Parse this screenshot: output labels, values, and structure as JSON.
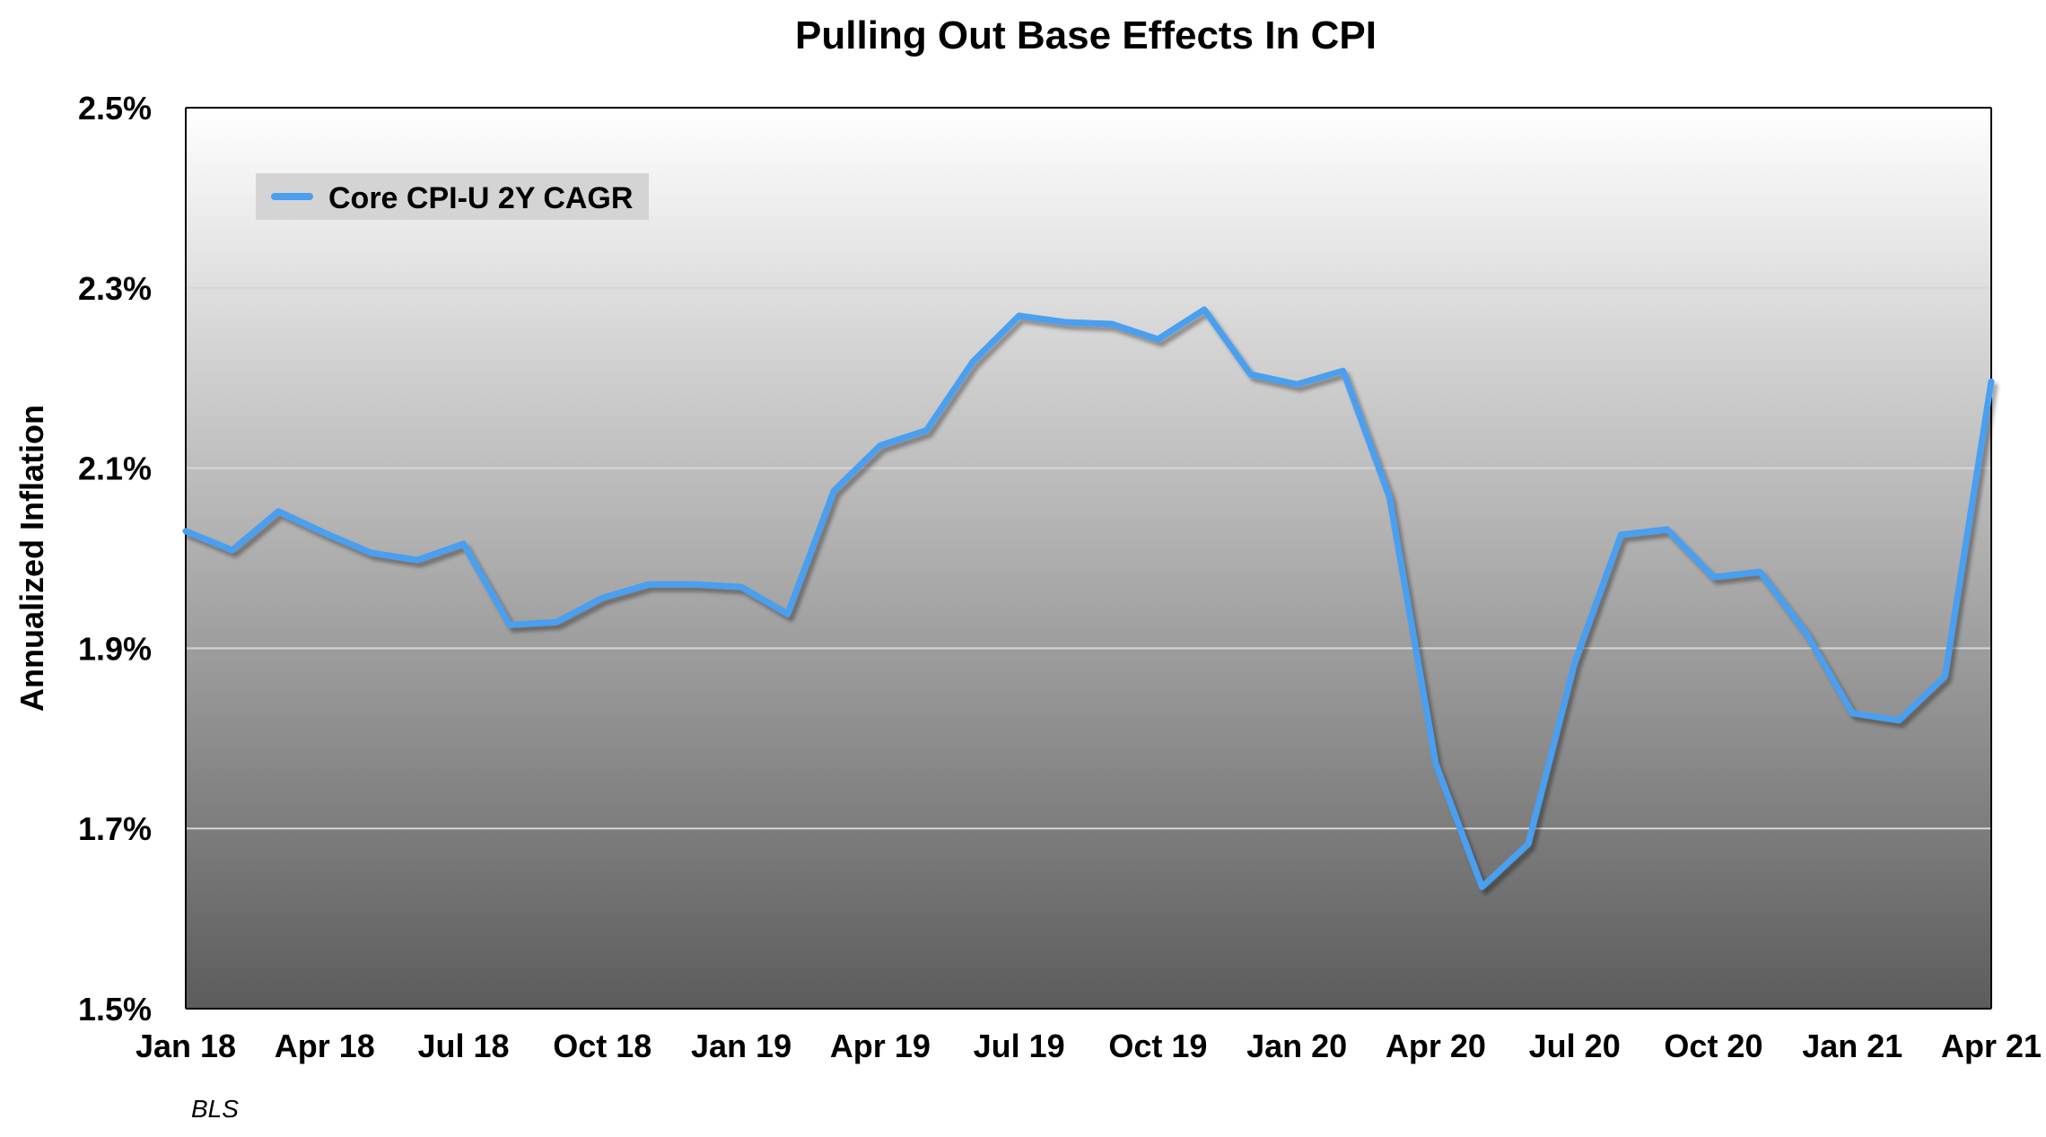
{
  "chart_data": {
    "type": "line",
    "title": "Pulling Out Base Effects In CPI",
    "xlabel": "",
    "ylabel": "Annualized Inflation",
    "source": "BLS",
    "ylim": [
      1.5,
      2.5
    ],
    "y_ticks": [
      "1.5%",
      "1.7%",
      "1.9%",
      "2.1%",
      "2.3%",
      "2.5%"
    ],
    "x_tick_labels": [
      "Jan 18",
      "Apr 18",
      "Jul 18",
      "Oct 18",
      "Jan 19",
      "Apr 19",
      "Jul 19",
      "Oct 19",
      "Jan 20",
      "Apr 20",
      "Jul 20",
      "Oct 20",
      "Jan 21",
      "Apr 21"
    ],
    "grid": true,
    "legend_position": "top-left",
    "colors": {
      "line": "#4a9ff0",
      "plot_bg_top": "#ffffff",
      "plot_bg_bottom": "#5c5c5c",
      "legend_bg": "#d4d4d4"
    },
    "categories": [
      "Jan 18",
      "Feb 18",
      "Mar 18",
      "Apr 18",
      "May 18",
      "Jun 18",
      "Jul 18",
      "Aug 18",
      "Sep 18",
      "Oct 18",
      "Nov 18",
      "Dec 18",
      "Jan 19",
      "Feb 19",
      "Mar 19",
      "Apr 19",
      "May 19",
      "Jun 19",
      "Jul 19",
      "Aug 19",
      "Sep 19",
      "Oct 19",
      "Nov 19",
      "Dec 19",
      "Jan 20",
      "Feb 20",
      "Mar 20",
      "Apr 20",
      "May 20",
      "Jun 20",
      "Jul 20",
      "Aug 20",
      "Sep 20",
      "Oct 20",
      "Nov 20",
      "Dec 20",
      "Jan 21",
      "Feb 21",
      "Mar 21",
      "Apr 21"
    ],
    "series": [
      {
        "name": "Core CPI-U 2Y CAGR",
        "values": [
          2.03,
          2.009,
          2.052,
          2.028,
          2.006,
          1.998,
          2.016,
          1.926,
          1.929,
          1.956,
          1.971,
          1.971,
          1.968,
          1.938,
          2.075,
          2.125,
          2.142,
          2.218,
          2.269,
          2.262,
          2.26,
          2.243,
          2.276,
          2.204,
          2.193,
          2.208,
          2.068,
          1.772,
          1.635,
          1.683,
          1.884,
          2.026,
          2.032,
          1.979,
          1.985,
          1.917,
          1.828,
          1.82,
          1.869,
          2.196
        ]
      }
    ]
  }
}
